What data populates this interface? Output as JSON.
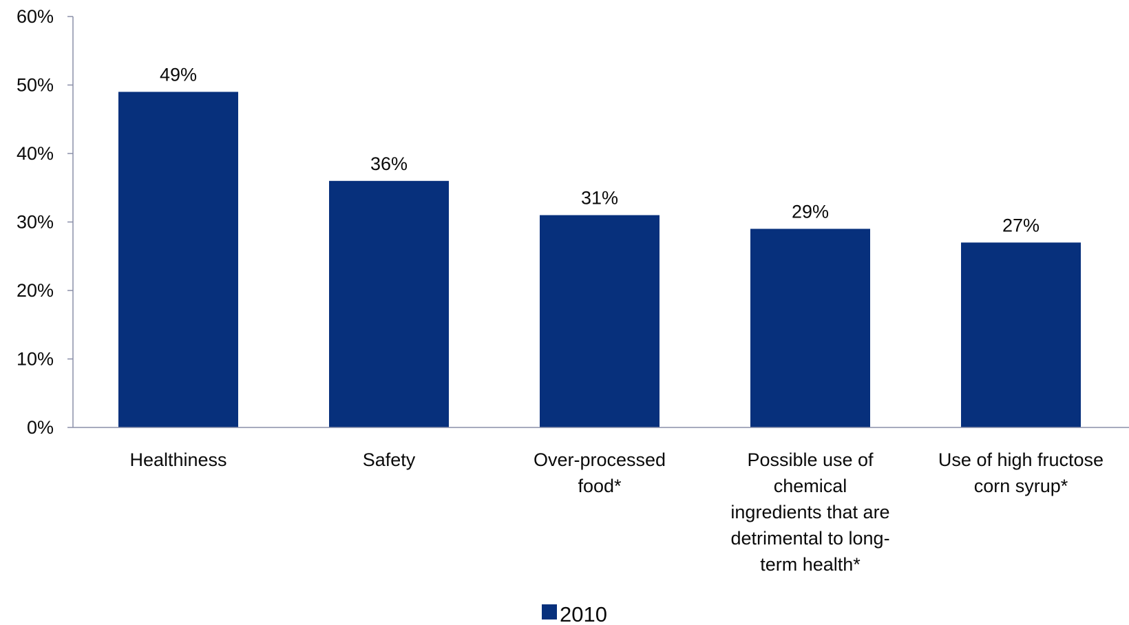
{
  "chart_data": {
    "type": "bar",
    "categories": [
      "Healthiness",
      "Safety",
      "Over-processed food*",
      "Possible use of chemical ingredients that are detrimental to long-term health*",
      "Use of high fructose corn syrup*"
    ],
    "category_label_lines": [
      [
        "Healthiness"
      ],
      [
        "Safety"
      ],
      [
        "Over-processed",
        "food*"
      ],
      [
        "Possible use of",
        "chemical",
        "ingredients that are",
        "detrimental to long-",
        "term health*"
      ],
      [
        "Use of high fructose",
        "corn syrup*"
      ]
    ],
    "series": [
      {
        "name": "2010",
        "values": [
          49,
          36,
          31,
          29,
          27
        ],
        "data_labels": [
          "49%",
          "36%",
          "31%",
          "29%",
          "27%"
        ],
        "color": "#07307c"
      }
    ],
    "title": "",
    "xlabel": "",
    "ylabel": "",
    "ylim": [
      0,
      60
    ],
    "y_ticks": [
      0,
      10,
      20,
      30,
      40,
      50,
      60
    ],
    "y_tick_labels": [
      "0%",
      "10%",
      "20%",
      "30%",
      "40%",
      "50%",
      "60%"
    ],
    "grid": false,
    "legend_position": "bottom-center",
    "axis_color": "#8a8fa8"
  }
}
